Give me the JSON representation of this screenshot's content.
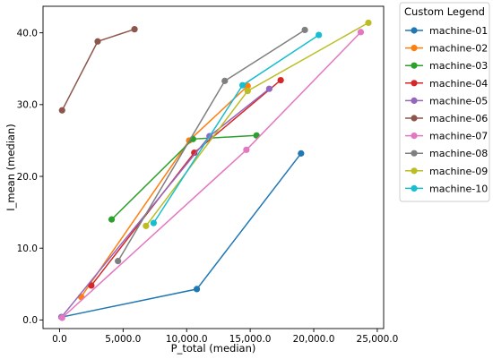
{
  "chart_data": {
    "type": "line",
    "title": "",
    "xlabel": "P_total (median)",
    "ylabel": "I_mean (median)",
    "xlim": [
      -1300,
      25500
    ],
    "ylim": [
      -1.2,
      43.7
    ],
    "xticks": [
      0,
      5000,
      10000,
      15000,
      20000,
      25000
    ],
    "xtick_labels": [
      "0.0",
      "5,000.0",
      "10,000.0",
      "15,000.0",
      "20,000.0",
      "25,000.0"
    ],
    "yticks": [
      0,
      10,
      20,
      30,
      40
    ],
    "ytick_labels": [
      "0.0",
      "10.0",
      "20.0",
      "30.0",
      "40.0"
    ],
    "grid": false,
    "legend": {
      "title": "Custom Legend",
      "placement": "outside-right-top"
    },
    "series": [
      {
        "name": "machine-01",
        "color": "#1f77b4",
        "points": [
          [
            150,
            0.4
          ],
          [
            10800,
            4.3
          ],
          [
            19000,
            23.2
          ]
        ]
      },
      {
        "name": "machine-02",
        "color": "#ff7f0e",
        "points": [
          [
            1700,
            3.2
          ],
          [
            10200,
            25.0
          ],
          [
            14800,
            32.6
          ]
        ]
      },
      {
        "name": "machine-03",
        "color": "#2ca02c",
        "points": [
          [
            4100,
            14.0
          ],
          [
            10500,
            25.2
          ],
          [
            15500,
            25.7
          ]
        ]
      },
      {
        "name": "machine-04",
        "color": "#d62728",
        "points": [
          [
            2500,
            4.8
          ],
          [
            10600,
            23.3
          ],
          [
            17400,
            33.4
          ]
        ]
      },
      {
        "name": "machine-05",
        "color": "#9467bd",
        "points": [
          [
            150,
            0.4
          ],
          [
            11800,
            25.6
          ],
          [
            16500,
            32.2
          ]
        ]
      },
      {
        "name": "machine-06",
        "color": "#8c564b",
        "points": [
          [
            200,
            29.2
          ],
          [
            3000,
            38.8
          ],
          [
            5900,
            40.5
          ]
        ]
      },
      {
        "name": "machine-07",
        "color": "#e377c2",
        "points": [
          [
            200,
            0.3
          ],
          [
            14700,
            23.7
          ],
          [
            23700,
            40.1
          ]
        ]
      },
      {
        "name": "machine-08",
        "color": "#7f7f7f",
        "points": [
          [
            4600,
            8.2
          ],
          [
            13000,
            33.3
          ],
          [
            19300,
            40.4
          ]
        ]
      },
      {
        "name": "machine-09",
        "color": "#bcbd22",
        "points": [
          [
            6800,
            13.1
          ],
          [
            14800,
            31.9
          ],
          [
            24300,
            41.4
          ]
        ]
      },
      {
        "name": "machine-10",
        "color": "#17becf",
        "points": [
          [
            7400,
            13.5
          ],
          [
            14400,
            32.7
          ],
          [
            20400,
            39.7
          ]
        ]
      }
    ]
  }
}
